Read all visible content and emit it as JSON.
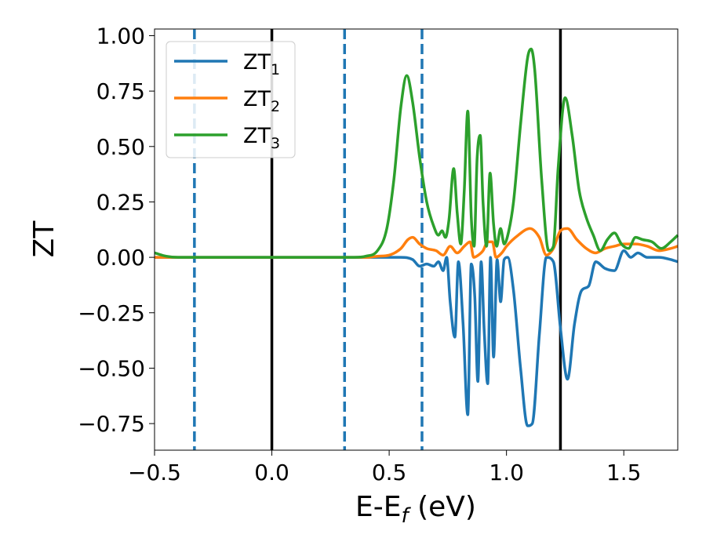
{
  "chart_data": {
    "type": "line",
    "title": "",
    "xlabel": {
      "main": "E-E",
      "sub": "f",
      "unit": " (eV)"
    },
    "ylabel": "ZT",
    "xlim": [
      -0.5,
      1.73
    ],
    "ylim": [
      -0.87,
      1.03
    ],
    "x_ticks": [
      {
        "value": -0.5,
        "label": "−0.5"
      },
      {
        "value": 0.0,
        "label": "0.0"
      },
      {
        "value": 0.5,
        "label": "0.5"
      },
      {
        "value": 1.0,
        "label": "1.0"
      },
      {
        "value": 1.5,
        "label": "1.5"
      }
    ],
    "y_ticks": [
      {
        "value": 1.0,
        "label": "1.00"
      },
      {
        "value": 0.75,
        "label": "0.75"
      },
      {
        "value": 0.5,
        "label": "0.50"
      },
      {
        "value": 0.25,
        "label": "0.25"
      },
      {
        "value": 0.0,
        "label": "0.00"
      },
      {
        "value": -0.25,
        "label": "−0.25"
      },
      {
        "value": -0.5,
        "label": "−0.50"
      },
      {
        "value": -0.75,
        "label": "−0.75"
      }
    ],
    "grid": false,
    "legend_position": "top-left",
    "vlines": [
      {
        "x": -0.33,
        "style": "dashed",
        "color": "#1f77b4"
      },
      {
        "x": 0.0,
        "style": "solid",
        "color": "#000000"
      },
      {
        "x": 0.31,
        "style": "dashed",
        "color": "#1f77b4"
      },
      {
        "x": 0.64,
        "style": "dashed",
        "color": "#1f77b4"
      },
      {
        "x": 1.23,
        "style": "solid",
        "color": "#000000"
      }
    ],
    "series": [
      {
        "name": "ZT",
        "sub": "1",
        "color": "#1f77b4",
        "points": [
          [
            -0.5,
            0.0
          ],
          [
            0.3,
            0.0
          ],
          [
            0.55,
            0.0
          ],
          [
            0.6,
            -0.01
          ],
          [
            0.63,
            -0.04
          ],
          [
            0.66,
            -0.03
          ],
          [
            0.69,
            -0.04
          ],
          [
            0.71,
            -0.02
          ],
          [
            0.73,
            -0.06
          ],
          [
            0.745,
            0.0
          ],
          [
            0.76,
            -0.2
          ],
          [
            0.78,
            -0.36
          ],
          [
            0.795,
            -0.02
          ],
          [
            0.815,
            -0.3
          ],
          [
            0.835,
            -0.71
          ],
          [
            0.85,
            -0.03
          ],
          [
            0.865,
            -0.18
          ],
          [
            0.878,
            -0.56
          ],
          [
            0.892,
            -0.02
          ],
          [
            0.905,
            -0.33
          ],
          [
            0.92,
            -0.57
          ],
          [
            0.932,
            0.0
          ],
          [
            0.945,
            -0.45
          ],
          [
            0.96,
            -0.01
          ],
          [
            0.975,
            -0.2
          ],
          [
            0.99,
            -0.01
          ],
          [
            1.005,
            0.0
          ],
          [
            1.03,
            -0.15
          ],
          [
            1.06,
            -0.5
          ],
          [
            1.09,
            -0.76
          ],
          [
            1.11,
            -0.75
          ],
          [
            1.14,
            -0.35
          ],
          [
            1.17,
            0.0
          ],
          [
            1.2,
            -0.02
          ],
          [
            1.23,
            -0.32
          ],
          [
            1.26,
            -0.55
          ],
          [
            1.29,
            -0.3
          ],
          [
            1.32,
            -0.15
          ],
          [
            1.35,
            -0.13
          ],
          [
            1.38,
            -0.02
          ],
          [
            1.42,
            -0.05
          ],
          [
            1.46,
            -0.06
          ],
          [
            1.5,
            0.03
          ],
          [
            1.53,
            0.0
          ],
          [
            1.56,
            0.02
          ],
          [
            1.6,
            0.0
          ],
          [
            1.65,
            0.0
          ],
          [
            1.7,
            -0.01
          ],
          [
            1.73,
            -0.02
          ]
        ]
      },
      {
        "name": "ZT",
        "sub": "2",
        "color": "#ff7f0e",
        "points": [
          [
            -0.5,
            0.0
          ],
          [
            0.3,
            0.0
          ],
          [
            0.4,
            0.0
          ],
          [
            0.45,
            0.005
          ],
          [
            0.5,
            0.01
          ],
          [
            0.55,
            0.04
          ],
          [
            0.58,
            0.08
          ],
          [
            0.6,
            0.09
          ],
          [
            0.63,
            0.06
          ],
          [
            0.66,
            0.04
          ],
          [
            0.7,
            0.03
          ],
          [
            0.73,
            0.01
          ],
          [
            0.76,
            0.05
          ],
          [
            0.79,
            0.02
          ],
          [
            0.82,
            0.05
          ],
          [
            0.845,
            0.07
          ],
          [
            0.86,
            0.0
          ],
          [
            0.88,
            0.01
          ],
          [
            0.9,
            0.03
          ],
          [
            0.92,
            0.07
          ],
          [
            0.94,
            0.07
          ],
          [
            0.955,
            0.0
          ],
          [
            0.98,
            0.02
          ],
          [
            1.0,
            0.05
          ],
          [
            1.05,
            0.1
          ],
          [
            1.1,
            0.13
          ],
          [
            1.14,
            0.09
          ],
          [
            1.17,
            0.01
          ],
          [
            1.2,
            0.04
          ],
          [
            1.23,
            0.12
          ],
          [
            1.26,
            0.13
          ],
          [
            1.3,
            0.08
          ],
          [
            1.34,
            0.04
          ],
          [
            1.38,
            0.02
          ],
          [
            1.42,
            0.04
          ],
          [
            1.46,
            0.05
          ],
          [
            1.5,
            0.06
          ],
          [
            1.55,
            0.06
          ],
          [
            1.6,
            0.05
          ],
          [
            1.65,
            0.03
          ],
          [
            1.7,
            0.04
          ],
          [
            1.73,
            0.05
          ]
        ]
      },
      {
        "name": "ZT",
        "sub": "3",
        "color": "#2ca02c",
        "points": [
          [
            -0.5,
            0.02
          ],
          [
            -0.45,
            0.005
          ],
          [
            -0.4,
            0.0
          ],
          [
            0.35,
            0.0
          ],
          [
            0.4,
            0.005
          ],
          [
            0.45,
            0.03
          ],
          [
            0.49,
            0.13
          ],
          [
            0.52,
            0.35
          ],
          [
            0.55,
            0.68
          ],
          [
            0.575,
            0.82
          ],
          [
            0.6,
            0.7
          ],
          [
            0.63,
            0.45
          ],
          [
            0.66,
            0.25
          ],
          [
            0.69,
            0.14
          ],
          [
            0.71,
            0.1
          ],
          [
            0.725,
            0.12
          ],
          [
            0.74,
            0.09
          ],
          [
            0.755,
            0.17
          ],
          [
            0.775,
            0.4
          ],
          [
            0.79,
            0.2
          ],
          [
            0.805,
            0.06
          ],
          [
            0.82,
            0.3
          ],
          [
            0.835,
            0.66
          ],
          [
            0.85,
            0.18
          ],
          [
            0.862,
            0.05
          ],
          [
            0.875,
            0.45
          ],
          [
            0.888,
            0.55
          ],
          [
            0.9,
            0.25
          ],
          [
            0.915,
            0.05
          ],
          [
            0.93,
            0.38
          ],
          [
            0.945,
            0.15
          ],
          [
            0.958,
            0.05
          ],
          [
            0.975,
            0.13
          ],
          [
            0.99,
            0.06
          ],
          [
            1.01,
            0.12
          ],
          [
            1.03,
            0.25
          ],
          [
            1.06,
            0.6
          ],
          [
            1.09,
            0.9
          ],
          [
            1.105,
            0.94
          ],
          [
            1.12,
            0.85
          ],
          [
            1.15,
            0.35
          ],
          [
            1.18,
            0.03
          ],
          [
            1.2,
            0.05
          ],
          [
            1.22,
            0.4
          ],
          [
            1.25,
            0.72
          ],
          [
            1.28,
            0.55
          ],
          [
            1.31,
            0.3
          ],
          [
            1.34,
            0.18
          ],
          [
            1.37,
            0.1
          ],
          [
            1.4,
            0.03
          ],
          [
            1.43,
            0.08
          ],
          [
            1.46,
            0.11
          ],
          [
            1.49,
            0.06
          ],
          [
            1.52,
            0.04
          ],
          [
            1.55,
            0.09
          ],
          [
            1.58,
            0.08
          ],
          [
            1.62,
            0.07
          ],
          [
            1.66,
            0.04
          ],
          [
            1.7,
            0.07
          ],
          [
            1.73,
            0.1
          ]
        ]
      }
    ]
  }
}
